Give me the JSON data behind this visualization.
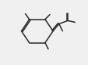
{
  "bg_color": "#f0f0f0",
  "line_color": "#2a2a2a",
  "line_width": 1.1,
  "figsize": [
    1.14,
    0.83
  ],
  "dpi": 100
}
